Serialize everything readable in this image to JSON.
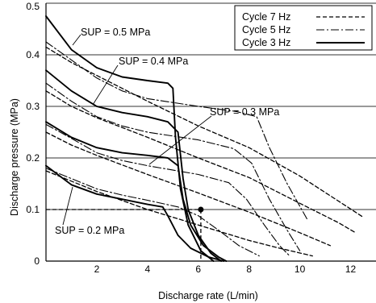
{
  "chart_data": {
    "type": "line",
    "xlabel": "Discharge rate (L/min)",
    "ylabel": "Discharge pressure (MPa)",
    "xlim": [
      0,
      13
    ],
    "ylim": [
      0,
      0.5
    ],
    "xticks": [
      "2",
      "4",
      "6",
      "8",
      "10",
      "12"
    ],
    "yticks": [
      "0",
      "0.1",
      "0.2",
      "0.3",
      "0.4",
      "0.5"
    ],
    "grid": "horizontal",
    "legend_position": "top-right",
    "legend": [
      {
        "label": "Cycle 7 Hz",
        "style": "dashed"
      },
      {
        "label": "Cycle 5 Hz",
        "style": "dashdot"
      },
      {
        "label": "Cycle 3 Hz",
        "style": "solid"
      }
    ],
    "annotations": [
      {
        "text": "SUP = 0.5 MPa"
      },
      {
        "text": "SUP = 0.4 MPa"
      },
      {
        "text": "SUP = 0.3 MPa"
      },
      {
        "text": "SUP = 0.2 MPa"
      }
    ],
    "operating_point": {
      "x": 6.1,
      "y": 0.1
    },
    "series": [
      {
        "sup": 0.5,
        "cycle": "7Hz",
        "points": [
          [
            0,
            0.415
          ],
          [
            1,
            0.385
          ],
          [
            2,
            0.36
          ],
          [
            4,
            0.31
          ],
          [
            6,
            0.262
          ],
          [
            8,
            0.22
          ],
          [
            10,
            0.165
          ],
          [
            11,
            0.133
          ],
          [
            12.5,
            0.085
          ]
        ]
      },
      {
        "sup": 0.5,
        "cycle": "5Hz",
        "points": [
          [
            0,
            0.425
          ],
          [
            1,
            0.39
          ],
          [
            2,
            0.355
          ],
          [
            3,
            0.33
          ],
          [
            4,
            0.315
          ],
          [
            6,
            0.3
          ],
          [
            7.5,
            0.29
          ],
          [
            8.3,
            0.28
          ],
          [
            8.8,
            0.22
          ],
          [
            9.5,
            0.15
          ],
          [
            10.3,
            0.08
          ]
        ]
      },
      {
        "sup": 0.5,
        "cycle": "3Hz",
        "points": [
          [
            0,
            0.475
          ],
          [
            1,
            0.41
          ],
          [
            2,
            0.375
          ],
          [
            3,
            0.357
          ],
          [
            4,
            0.35
          ],
          [
            4.8,
            0.345
          ],
          [
            5,
            0.335
          ],
          [
            5.1,
            0.24
          ],
          [
            5.3,
            0.14
          ],
          [
            5.6,
            0.07
          ],
          [
            6.1,
            0.02
          ],
          [
            6.6,
            0
          ]
        ]
      },
      {
        "sup": 0.4,
        "cycle": "7Hz",
        "points": [
          [
            0,
            0.33
          ],
          [
            1,
            0.3
          ],
          [
            2,
            0.278
          ],
          [
            4,
            0.24
          ],
          [
            6,
            0.2
          ],
          [
            8,
            0.162
          ],
          [
            10,
            0.112
          ],
          [
            11.5,
            0.075
          ],
          [
            12.2,
            0.055
          ]
        ]
      },
      {
        "sup": 0.4,
        "cycle": "5Hz",
        "points": [
          [
            0,
            0.345
          ],
          [
            1,
            0.31
          ],
          [
            2,
            0.28
          ],
          [
            3,
            0.262
          ],
          [
            4,
            0.25
          ],
          [
            6,
            0.235
          ],
          [
            7.4,
            0.218
          ],
          [
            8.1,
            0.19
          ],
          [
            8.8,
            0.12
          ],
          [
            9.5,
            0.06
          ],
          [
            10,
            0.02
          ]
        ]
      },
      {
        "sup": 0.4,
        "cycle": "3Hz",
        "points": [
          [
            0,
            0.37
          ],
          [
            1,
            0.33
          ],
          [
            2,
            0.3
          ],
          [
            3,
            0.288
          ],
          [
            4,
            0.28
          ],
          [
            4.8,
            0.27
          ],
          [
            5.2,
            0.25
          ],
          [
            5.4,
            0.16
          ],
          [
            5.6,
            0.1
          ],
          [
            6,
            0.05
          ],
          [
            6.5,
            0.015
          ],
          [
            6.9,
            0
          ]
        ]
      },
      {
        "sup": 0.3,
        "cycle": "7Hz",
        "points": [
          [
            0,
            0.25
          ],
          [
            1,
            0.225
          ],
          [
            2,
            0.205
          ],
          [
            4,
            0.168
          ],
          [
            6,
            0.132
          ],
          [
            8,
            0.095
          ],
          [
            10,
            0.055
          ],
          [
            11.2,
            0.03
          ]
        ]
      },
      {
        "sup": 0.3,
        "cycle": "5Hz",
        "points": [
          [
            0,
            0.265
          ],
          [
            1,
            0.238
          ],
          [
            2,
            0.21
          ],
          [
            3,
            0.195
          ],
          [
            4,
            0.185
          ],
          [
            6,
            0.168
          ],
          [
            7.2,
            0.152
          ],
          [
            7.9,
            0.12
          ],
          [
            8.6,
            0.07
          ],
          [
            9.2,
            0.03
          ],
          [
            9.6,
            0.01
          ]
        ]
      },
      {
        "sup": 0.3,
        "cycle": "3Hz",
        "points": [
          [
            0,
            0.27
          ],
          [
            1,
            0.24
          ],
          [
            2,
            0.22
          ],
          [
            3,
            0.21
          ],
          [
            4,
            0.205
          ],
          [
            4.8,
            0.2
          ],
          [
            5.2,
            0.185
          ],
          [
            5.4,
            0.12
          ],
          [
            5.7,
            0.07
          ],
          [
            6.2,
            0.03
          ],
          [
            6.8,
            0.008
          ],
          [
            7.1,
            0
          ]
        ]
      },
      {
        "sup": 0.2,
        "cycle": "7Hz",
        "points": [
          [
            0,
            0.175
          ],
          [
            1,
            0.155
          ],
          [
            2,
            0.135
          ],
          [
            4,
            0.1
          ],
          [
            6,
            0.07
          ],
          [
            8,
            0.04
          ],
          [
            9.2,
            0.025
          ],
          [
            10.5,
            0.01
          ]
        ]
      },
      {
        "sup": 0.2,
        "cycle": "5Hz",
        "points": [
          [
            0,
            0.18
          ],
          [
            1,
            0.16
          ],
          [
            2,
            0.14
          ],
          [
            3,
            0.128
          ],
          [
            4,
            0.118
          ],
          [
            5.2,
            0.105
          ],
          [
            6,
            0.088
          ],
          [
            6.8,
            0.06
          ],
          [
            7.6,
            0.03
          ],
          [
            8.4,
            0.01
          ]
        ]
      },
      {
        "sup": 0.2,
        "cycle": "3Hz",
        "points": [
          [
            0,
            0.185
          ],
          [
            1,
            0.148
          ],
          [
            2,
            0.13
          ],
          [
            3,
            0.12
          ],
          [
            4,
            0.11
          ],
          [
            4.6,
            0.105
          ],
          [
            4.8,
            0.088
          ],
          [
            5.2,
            0.05
          ],
          [
            5.7,
            0.025
          ],
          [
            6.4,
            0.008
          ],
          [
            7,
            0
          ]
        ]
      }
    ]
  }
}
